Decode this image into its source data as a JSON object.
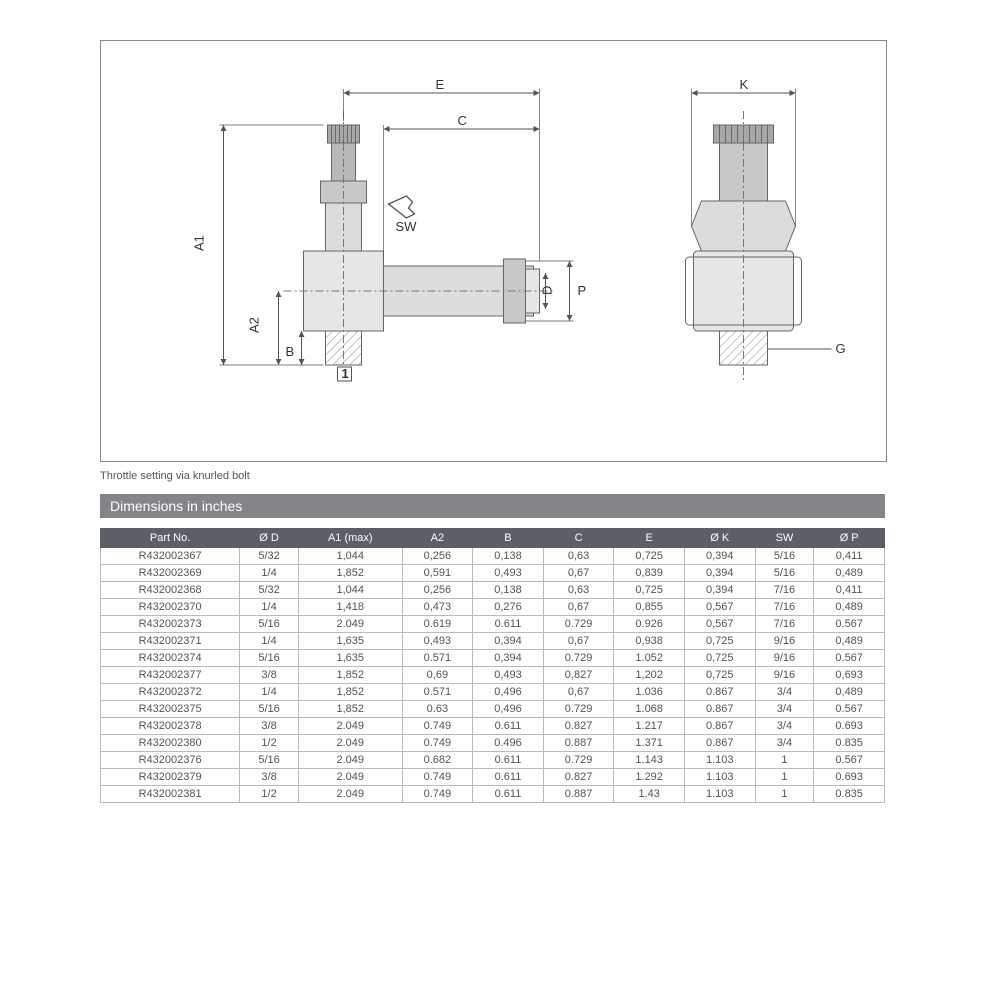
{
  "diagram": {
    "caption": "Throttle setting via knurled bolt",
    "labels": {
      "A1": "A1",
      "A2": "A2",
      "B": "B",
      "C": "C",
      "D": "D",
      "E": "E",
      "G": "G",
      "K": "K",
      "P": "P",
      "SW": "SW",
      "one": "1"
    },
    "colors": {
      "outline": "#666666",
      "fill_light": "#f5f5f5",
      "fill_med": "#dcdcdc",
      "fill_dark": "#c8c8c8",
      "dim_line": "#555555",
      "hatch": "#888888"
    }
  },
  "section_title": "Dimensions in inches",
  "table": {
    "columns": [
      "Part No.",
      "Ø D",
      "A1 (max)",
      "A2",
      "B",
      "C",
      "E",
      "Ø K",
      "SW",
      "Ø P"
    ],
    "rows": [
      [
        "R432002367",
        "5/32",
        "1,044",
        "0,256",
        "0,138",
        "0,63",
        "0,725",
        "0,394",
        "5/16",
        "0,411"
      ],
      [
        "R432002369",
        "1/4",
        "1,852",
        "0,591",
        "0,493",
        "0,67",
        "0,839",
        "0,394",
        "5/16",
        "0,489"
      ],
      [
        "R432002368",
        "5/32",
        "1,044",
        "0,256",
        "0,138",
        "0,63",
        "0,725",
        "0,394",
        "7/16",
        "0,411"
      ],
      [
        "R432002370",
        "1/4",
        "1,418",
        "0,473",
        "0,276",
        "0,67",
        "0,855",
        "0,567",
        "7/16",
        "0,489"
      ],
      [
        "R432002373",
        "5/16",
        "2.049",
        "0.619",
        "0.611",
        "0.729",
        "0.926",
        "0,567",
        "7/16",
        "0.567"
      ],
      [
        "R432002371",
        "1/4",
        "1,635",
        "0,493",
        "0,394",
        "0,67",
        "0,938",
        "0,725",
        "9/16",
        "0,489"
      ],
      [
        "R432002374",
        "5/16",
        "1,635",
        "0.571",
        "0,394",
        "0.729",
        "1.052",
        "0,725",
        "9/16",
        "0.567"
      ],
      [
        "R432002377",
        "3/8",
        "1,852",
        "0,69",
        "0,493",
        "0,827",
        "1,202",
        "0,725",
        "9/16",
        "0,693"
      ],
      [
        "R432002372",
        "1/4",
        "1,852",
        "0.571",
        "0,496",
        "0,67",
        "1.036",
        "0.867",
        "3/4",
        "0,489"
      ],
      [
        "R432002375",
        "5/16",
        "1,852",
        "0.63",
        "0,496",
        "0.729",
        "1.068",
        "0.867",
        "3/4",
        "0.567"
      ],
      [
        "R432002378",
        "3/8",
        "2.049",
        "0.749",
        "0.611",
        "0.827",
        "1.217",
        "0.867",
        "3/4",
        "0.693"
      ],
      [
        "R432002380",
        "1/2",
        "2.049",
        "0.749",
        "0.496",
        "0.887",
        "1.371",
        "0.867",
        "3/4",
        "0.835"
      ],
      [
        "R432002376",
        "5/16",
        "2.049",
        "0.682",
        "0.611",
        "0.729",
        "1.143",
        "1.103",
        "1",
        "0.567"
      ],
      [
        "R432002379",
        "3/8",
        "2.049",
        "0.749",
        "0.611",
        "0.827",
        "1.292",
        "1.103",
        "1",
        "0.693"
      ],
      [
        "R432002381",
        "1/2",
        "2.049",
        "0.749",
        "0.611",
        "0.887",
        "1.43",
        "1.103",
        "1",
        "0.835"
      ]
    ]
  }
}
